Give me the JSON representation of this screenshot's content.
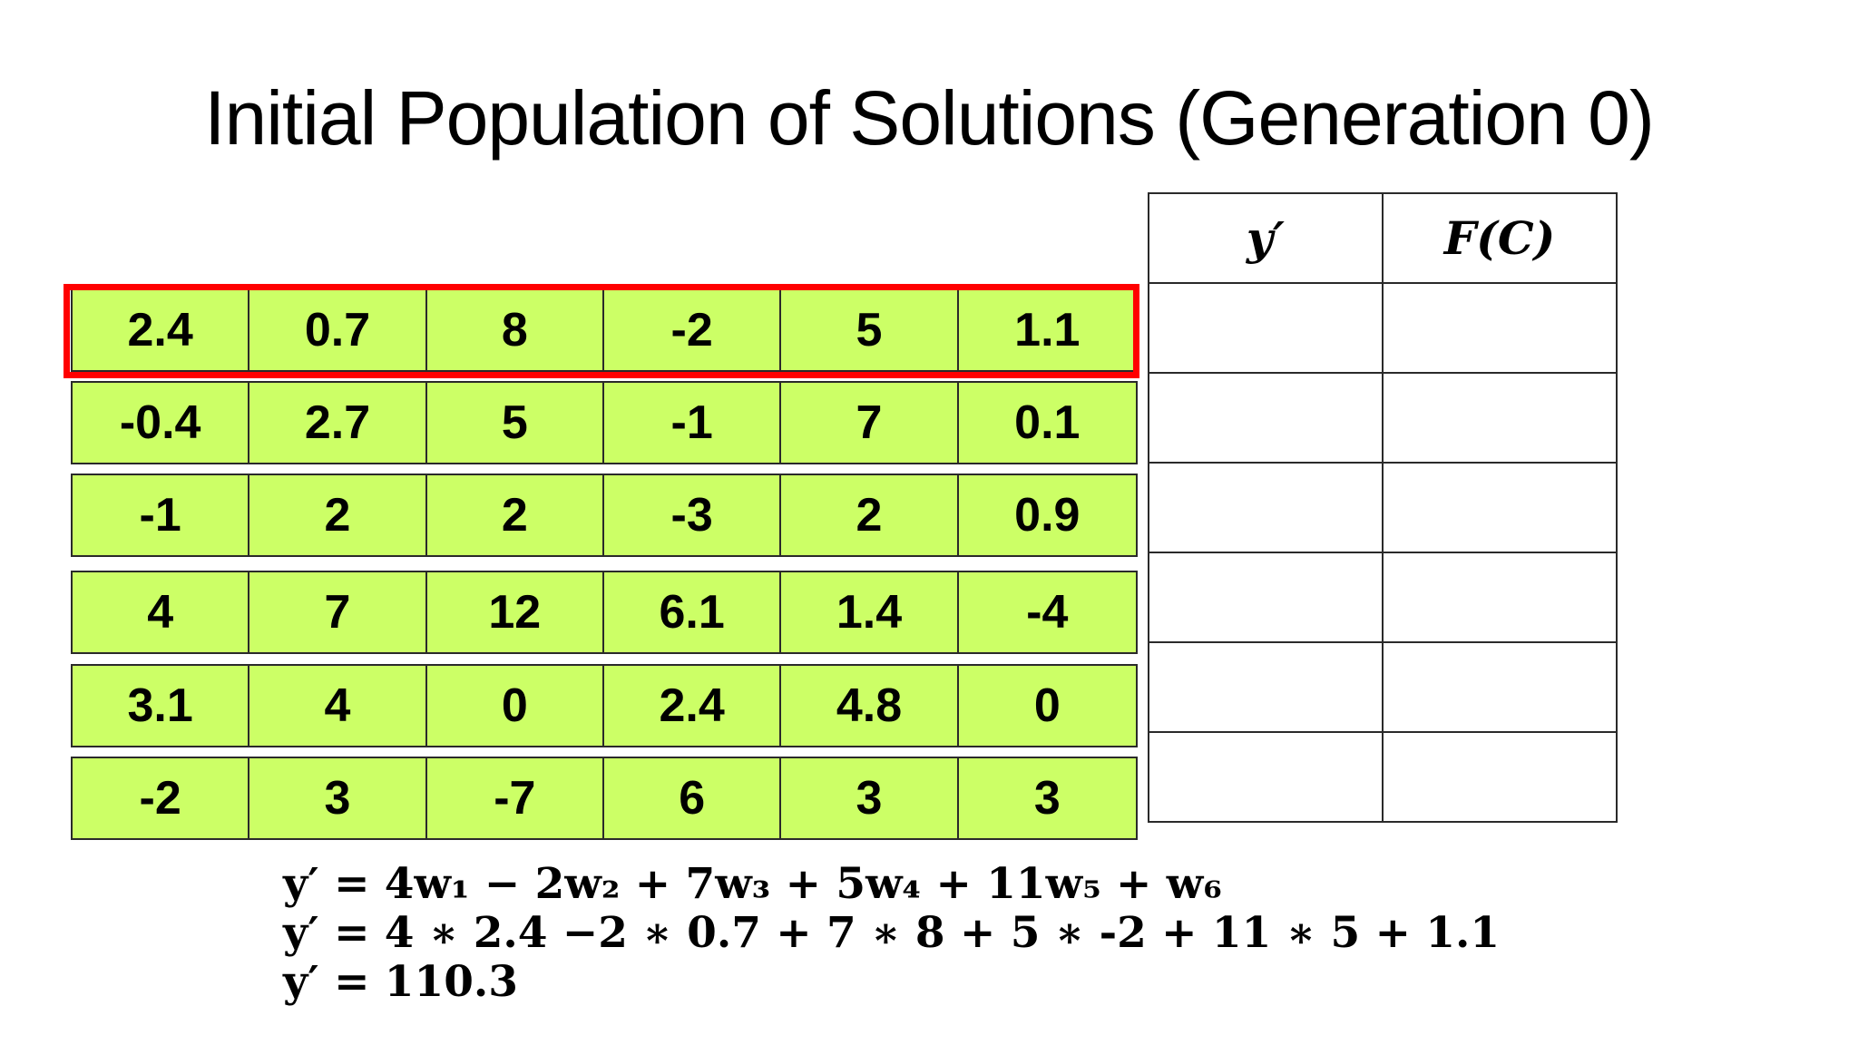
{
  "title": "Initial Population of Solutions (Generation 0)",
  "population": [
    [
      "2.4",
      "0.7",
      "8",
      "-2",
      "5",
      "1.1"
    ],
    [
      "-0.4",
      "2.7",
      "5",
      "-1",
      "7",
      "0.1"
    ],
    [
      "-1",
      "2",
      "2",
      "-3",
      "2",
      "0.9"
    ],
    [
      "4",
      "7",
      "12",
      "6.1",
      "1.4",
      "-4"
    ],
    [
      "3.1",
      "4",
      "0",
      "2.4",
      "4.8",
      "0"
    ],
    [
      "-2",
      "3",
      "-7",
      "6",
      "3",
      "3"
    ]
  ],
  "results": {
    "headers": [
      "y′",
      "F(C)"
    ],
    "values": [
      [
        "",
        ""
      ],
      [
        "",
        ""
      ],
      [
        "",
        ""
      ],
      [
        "",
        ""
      ],
      [
        "",
        ""
      ],
      [
        "",
        ""
      ]
    ]
  },
  "formulas": {
    "line1": "y′ = 4w₁ − 2w₂ + 7w₃ + 5w₄ + 11w₅ + w₆",
    "line2": "y′ = 4 ∗ 2.4 −2 ∗ 0.7 + 7 ∗ 8 + 5 ∗ -2 + 11 ∗ 5 + 1.1",
    "line3": "y′ = 110.3"
  },
  "colors": {
    "cell_fill": "#ccff66",
    "highlight_border": "#ff0000"
  }
}
